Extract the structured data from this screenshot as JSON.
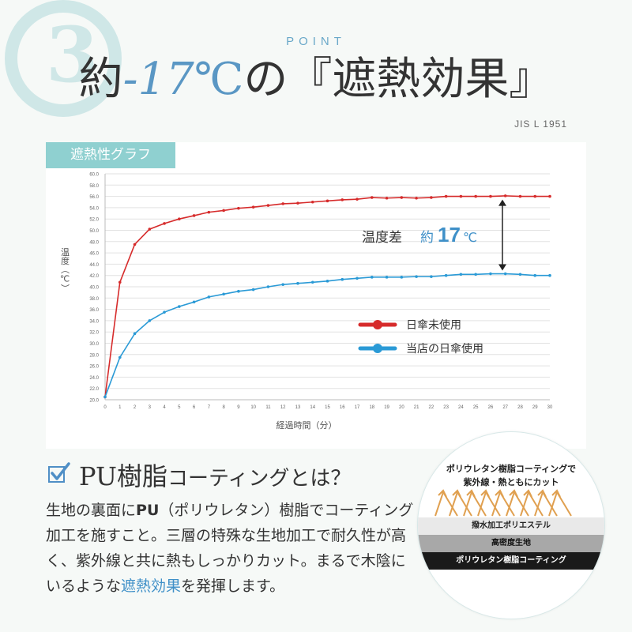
{
  "header": {
    "number": "3",
    "point_label": "POINT",
    "headline_prefix": "約",
    "headline_value": "-17",
    "headline_unit": "℃",
    "headline_suffix": "の『遮熱効果』",
    "standard": "JIS L 1951"
  },
  "panel": {
    "tab_label": "遮熱性グラフ"
  },
  "chart_data": {
    "type": "line",
    "title": "遮熱性グラフ",
    "xlabel": "経過時間（分）",
    "ylabel": "温度（℃）",
    "ylim": [
      20,
      60
    ],
    "xlim": [
      0,
      30
    ],
    "grid": true,
    "legend_position": "right",
    "y_ticks": [
      "20.0",
      "22.0",
      "24.0",
      "26.0",
      "28.0",
      "30.0",
      "32.0",
      "34.0",
      "36.0",
      "38.0",
      "40.0",
      "42.0",
      "44.0",
      "46.0",
      "48.0",
      "50.0",
      "52.0",
      "54.0",
      "56.0",
      "58.0",
      "60.0"
    ],
    "x_ticks": [
      "0",
      "1",
      "2",
      "3",
      "4",
      "5",
      "6",
      "7",
      "8",
      "9",
      "10",
      "11",
      "12",
      "13",
      "14",
      "15",
      "16",
      "17",
      "18",
      "19",
      "20",
      "21",
      "22",
      "23",
      "24",
      "25",
      "26",
      "27",
      "28",
      "29",
      "30"
    ],
    "x": [
      0,
      1,
      2,
      3,
      4,
      5,
      6,
      7,
      8,
      9,
      10,
      11,
      12,
      13,
      14,
      15,
      16,
      17,
      18,
      19,
      20,
      21,
      22,
      23,
      24,
      25,
      26,
      27,
      28,
      29,
      30
    ],
    "series": [
      {
        "name": "日傘未使用",
        "color": "#d62b2b",
        "values": [
          20.5,
          40.8,
          47.5,
          50.2,
          51.2,
          52.0,
          52.6,
          53.2,
          53.5,
          53.9,
          54.1,
          54.4,
          54.7,
          54.8,
          55.0,
          55.2,
          55.4,
          55.5,
          55.8,
          55.7,
          55.8,
          55.7,
          55.8,
          56.0,
          56.0,
          56.0,
          56.0,
          56.1,
          56.0,
          56.0,
          56.0
        ]
      },
      {
        "name": "当店の日傘使用",
        "color": "#2a9ad6",
        "values": [
          20.5,
          27.5,
          31.7,
          34.0,
          35.5,
          36.5,
          37.3,
          38.2,
          38.7,
          39.2,
          39.5,
          40.0,
          40.4,
          40.6,
          40.8,
          41.0,
          41.3,
          41.5,
          41.7,
          41.7,
          41.7,
          41.8,
          41.8,
          42.0,
          42.2,
          42.2,
          42.3,
          42.3,
          42.2,
          42.0,
          42.0
        ]
      }
    ],
    "annotation": {
      "label": "温度差",
      "prefix": "約",
      "value": "17",
      "unit": "℃"
    }
  },
  "section": {
    "title_main": "PU樹脂",
    "title_sub": "コーティングとは？",
    "body_p1": "生地の裏面に",
    "body_pu": "PU",
    "body_p2": "（ポリウレタン）樹脂でコーティング加工を施すこと。三層の特殊な生地加工で耐久性が高く、紫外線と共に熱もしっかりカット。まるで木陰にいるような",
    "body_highlight": "遮熱効果",
    "body_p3": "を発揮します。"
  },
  "diagram": {
    "caption_line1": "ポリウレタン樹脂コーティングで",
    "caption_line2": "紫外線・熱ともにカット",
    "layer1": "撥水加工ポリエステル",
    "layer2": "高密度生地",
    "layer3": "ポリウレタン樹脂コーティング"
  },
  "colors": {
    "accent_blue": "#5a97c4",
    "teal": "#8fd0d0",
    "red": "#d62b2b",
    "blue": "#2a9ad6"
  }
}
